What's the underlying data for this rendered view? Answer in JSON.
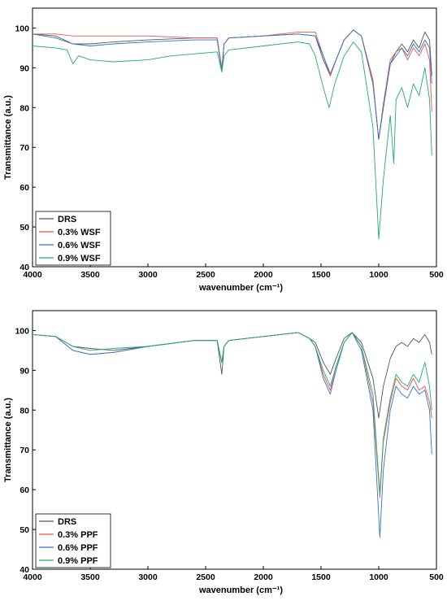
{
  "chart_data": [
    {
      "type": "line",
      "xlabel": "wavenumber (cm⁻¹)",
      "ylabel": "Transmittance (a.u.)",
      "xlim": [
        4000,
        500
      ],
      "ylim": [
        40,
        105
      ],
      "x_ticks": [
        4000,
        3500,
        3000,
        2500,
        2000,
        1500,
        1000,
        500
      ],
      "y_ticks": [
        40,
        50,
        60,
        70,
        80,
        90,
        100
      ],
      "legend_position": "bottom-left",
      "series": [
        {
          "name": "DRS",
          "color": "#555555",
          "points": [
            [
              4000,
              98.5
            ],
            [
              3800,
              98
            ],
            [
              3650,
              96
            ],
            [
              3500,
              96
            ],
            [
              3300,
              96.5
            ],
            [
              3000,
              97
            ],
            [
              2600,
              97.5
            ],
            [
              2400,
              97.5
            ],
            [
              2360,
              89
            ],
            [
              2340,
              96
            ],
            [
              2300,
              97.5
            ],
            [
              2000,
              98
            ],
            [
              1700,
              98.5
            ],
            [
              1550,
              98
            ],
            [
              1480,
              92
            ],
            [
              1420,
              88
            ],
            [
              1370,
              92
            ],
            [
              1300,
              97
            ],
            [
              1220,
              99.5
            ],
            [
              1150,
              98
            ],
            [
              1050,
              86
            ],
            [
              1000,
              72
            ],
            [
              960,
              80
            ],
            [
              900,
              91
            ],
            [
              850,
              94
            ],
            [
              800,
              96
            ],
            [
              750,
              94
            ],
            [
              700,
              97
            ],
            [
              650,
              95
            ],
            [
              600,
              99
            ],
            [
              560,
              97
            ],
            [
              540,
              88
            ]
          ]
        },
        {
          "name": "0.3% WSF",
          "color": "#e8544e",
          "points": [
            [
              4000,
              98.5
            ],
            [
              3800,
              98.5
            ],
            [
              3650,
              98
            ],
            [
              3500,
              98
            ],
            [
              3300,
              98
            ],
            [
              3000,
              98
            ],
            [
              2600,
              97.5
            ],
            [
              2400,
              97.5
            ],
            [
              2360,
              90
            ],
            [
              2340,
              96
            ],
            [
              2300,
              97.5
            ],
            [
              2000,
              98
            ],
            [
              1700,
              99
            ],
            [
              1550,
              99
            ],
            [
              1480,
              93
            ],
            [
              1420,
              88
            ],
            [
              1370,
              92
            ],
            [
              1300,
              97
            ],
            [
              1220,
              99.5
            ],
            [
              1150,
              98
            ],
            [
              1050,
              87
            ],
            [
              1000,
              72
            ],
            [
              960,
              81
            ],
            [
              900,
              92
            ],
            [
              850,
              94
            ],
            [
              800,
              95
            ],
            [
              750,
              92
            ],
            [
              700,
              95
            ],
            [
              650,
              93
            ],
            [
              600,
              96
            ],
            [
              560,
              92
            ],
            [
              540,
              79
            ]
          ]
        },
        {
          "name": "0.6% WSF",
          "color": "#2e75c9",
          "points": [
            [
              4000,
              98.5
            ],
            [
              3800,
              97.5
            ],
            [
              3650,
              96
            ],
            [
              3500,
              95.5
            ],
            [
              3300,
              96
            ],
            [
              3000,
              96.5
            ],
            [
              2600,
              97
            ],
            [
              2400,
              97
            ],
            [
              2360,
              89
            ],
            [
              2340,
              96
            ],
            [
              2300,
              97.5
            ],
            [
              2000,
              98
            ],
            [
              1700,
              98.5
            ],
            [
              1550,
              98
            ],
            [
              1480,
              93
            ],
            [
              1420,
              88.5
            ],
            [
              1370,
              92
            ],
            [
              1300,
              97
            ],
            [
              1220,
              99.5
            ],
            [
              1150,
              98
            ],
            [
              1050,
              86
            ],
            [
              1000,
              72
            ],
            [
              960,
              80
            ],
            [
              900,
              91
            ],
            [
              850,
              93
            ],
            [
              800,
              95
            ],
            [
              750,
              93
            ],
            [
              700,
              96
            ],
            [
              650,
              94
            ],
            [
              600,
              97
            ],
            [
              560,
              95
            ],
            [
              540,
              86
            ]
          ]
        },
        {
          "name": "0.9% WSF",
          "color": "#1fae6f",
          "points": [
            [
              4000,
              95.5
            ],
            [
              3800,
              95
            ],
            [
              3700,
              94.5
            ],
            [
              3650,
              91
            ],
            [
              3600,
              93
            ],
            [
              3500,
              92
            ],
            [
              3300,
              91.5
            ],
            [
              3000,
              92
            ],
            [
              2800,
              93
            ],
            [
              2600,
              93.5
            ],
            [
              2400,
              94
            ],
            [
              2360,
              89
            ],
            [
              2340,
              93
            ],
            [
              2300,
              94.5
            ],
            [
              2000,
              95.5
            ],
            [
              1700,
              96.5
            ],
            [
              1600,
              96
            ],
            [
              1550,
              93
            ],
            [
              1480,
              85
            ],
            [
              1430,
              80
            ],
            [
              1380,
              86
            ],
            [
              1300,
              93
            ],
            [
              1220,
              96.5
            ],
            [
              1150,
              94
            ],
            [
              1050,
              75
            ],
            [
              1000,
              47
            ],
            [
              960,
              62
            ],
            [
              900,
              78
            ],
            [
              870,
              66
            ],
            [
              850,
              82
            ],
            [
              800,
              85
            ],
            [
              750,
              80
            ],
            [
              700,
              86
            ],
            [
              650,
              83
            ],
            [
              600,
              90
            ],
            [
              560,
              82
            ],
            [
              540,
              68
            ]
          ]
        }
      ]
    },
    {
      "type": "line",
      "xlabel": "wavenumber (cm⁻¹)",
      "ylabel": "Transmittance (a.u.)",
      "xlim": [
        4000,
        500
      ],
      "ylim": [
        40,
        105
      ],
      "x_ticks": [
        4000,
        3500,
        3000,
        2500,
        2000,
        1500,
        1000,
        500
      ],
      "y_ticks": [
        40,
        50,
        60,
        70,
        80,
        90,
        100
      ],
      "legend_position": "bottom-left",
      "series": [
        {
          "name": "DRS",
          "color": "#555555",
          "points": [
            [
              4000,
              99
            ],
            [
              3800,
              98.5
            ],
            [
              3650,
              96
            ],
            [
              3500,
              95.5
            ],
            [
              3300,
              95
            ],
            [
              3000,
              96
            ],
            [
              2600,
              97.5
            ],
            [
              2400,
              97.5
            ],
            [
              2360,
              89
            ],
            [
              2340,
              96
            ],
            [
              2300,
              97.5
            ],
            [
              2000,
              98.5
            ],
            [
              1700,
              99.5
            ],
            [
              1600,
              98
            ],
            [
              1550,
              97
            ],
            [
              1480,
              92
            ],
            [
              1420,
              89
            ],
            [
              1370,
              93
            ],
            [
              1300,
              98
            ],
            [
              1230,
              99.5
            ],
            [
              1150,
              97
            ],
            [
              1050,
              88
            ],
            [
              1000,
              78
            ],
            [
              960,
              86
            ],
            [
              900,
              93
            ],
            [
              850,
              96
            ],
            [
              800,
              97
            ],
            [
              750,
              96
            ],
            [
              700,
              98
            ],
            [
              650,
              97
            ],
            [
              600,
              99
            ],
            [
              560,
              97
            ],
            [
              540,
              94
            ]
          ]
        },
        {
          "name": "0.3% PPF",
          "color": "#e8544e",
          "points": [
            [
              4000,
              99
            ],
            [
              3800,
              98.5
            ],
            [
              3650,
              95
            ],
            [
              3500,
              94
            ],
            [
              3300,
              94.5
            ],
            [
              3000,
              96
            ],
            [
              2600,
              97.5
            ],
            [
              2400,
              97.5
            ],
            [
              2360,
              92
            ],
            [
              2340,
              96
            ],
            [
              2300,
              97.5
            ],
            [
              2000,
              98.5
            ],
            [
              1700,
              99.5
            ],
            [
              1600,
              98
            ],
            [
              1550,
              96
            ],
            [
              1480,
              89
            ],
            [
              1420,
              85
            ],
            [
              1370,
              91
            ],
            [
              1300,
              97
            ],
            [
              1230,
              99.5
            ],
            [
              1150,
              96
            ],
            [
              1050,
              82
            ],
            [
              990,
              58
            ],
            [
              960,
              72
            ],
            [
              900,
              82
            ],
            [
              850,
              88
            ],
            [
              800,
              86
            ],
            [
              750,
              85
            ],
            [
              700,
              88
            ],
            [
              650,
              85
            ],
            [
              600,
              86
            ],
            [
              560,
              82
            ],
            [
              540,
              78
            ]
          ]
        },
        {
          "name": "0.6% PPF",
          "color": "#2e75c9",
          "points": [
            [
              4000,
              99
            ],
            [
              3800,
              98.5
            ],
            [
              3650,
              95
            ],
            [
              3500,
              94
            ],
            [
              3300,
              94.5
            ],
            [
              3000,
              96
            ],
            [
              2600,
              97.5
            ],
            [
              2400,
              97.5
            ],
            [
              2360,
              92
            ],
            [
              2340,
              96
            ],
            [
              2300,
              97.5
            ],
            [
              2000,
              98.5
            ],
            [
              1700,
              99.5
            ],
            [
              1600,
              98
            ],
            [
              1550,
              96
            ],
            [
              1480,
              88
            ],
            [
              1420,
              84
            ],
            [
              1370,
              90
            ],
            [
              1300,
              97
            ],
            [
              1230,
              99.5
            ],
            [
              1150,
              95
            ],
            [
              1050,
              80
            ],
            [
              990,
              48
            ],
            [
              960,
              65
            ],
            [
              900,
              80
            ],
            [
              850,
              86
            ],
            [
              800,
              84
            ],
            [
              750,
              83
            ],
            [
              700,
              86
            ],
            [
              650,
              84
            ],
            [
              600,
              85
            ],
            [
              560,
              80
            ],
            [
              540,
              69
            ]
          ]
        },
        {
          "name": "0.9% PPF",
          "color": "#1fae6f",
          "points": [
            [
              4000,
              99
            ],
            [
              3800,
              98.5
            ],
            [
              3650,
              96
            ],
            [
              3500,
              95
            ],
            [
              3300,
              95.5
            ],
            [
              3000,
              96
            ],
            [
              2600,
              97.5
            ],
            [
              2400,
              97.5
            ],
            [
              2360,
              92
            ],
            [
              2340,
              96
            ],
            [
              2300,
              97.5
            ],
            [
              2000,
              98.5
            ],
            [
              1700,
              99.5
            ],
            [
              1600,
              98
            ],
            [
              1550,
              96
            ],
            [
              1480,
              90
            ],
            [
              1420,
              86
            ],
            [
              1370,
              91
            ],
            [
              1300,
              97
            ],
            [
              1230,
              99.5
            ],
            [
              1150,
              96
            ],
            [
              1050,
              84
            ],
            [
              990,
              59
            ],
            [
              960,
              73
            ],
            [
              900,
              83
            ],
            [
              850,
              89
            ],
            [
              800,
              87
            ],
            [
              750,
              86
            ],
            [
              700,
              89
            ],
            [
              650,
              87
            ],
            [
              600,
              92
            ],
            [
              560,
              86
            ],
            [
              540,
              80
            ]
          ]
        }
      ]
    }
  ]
}
